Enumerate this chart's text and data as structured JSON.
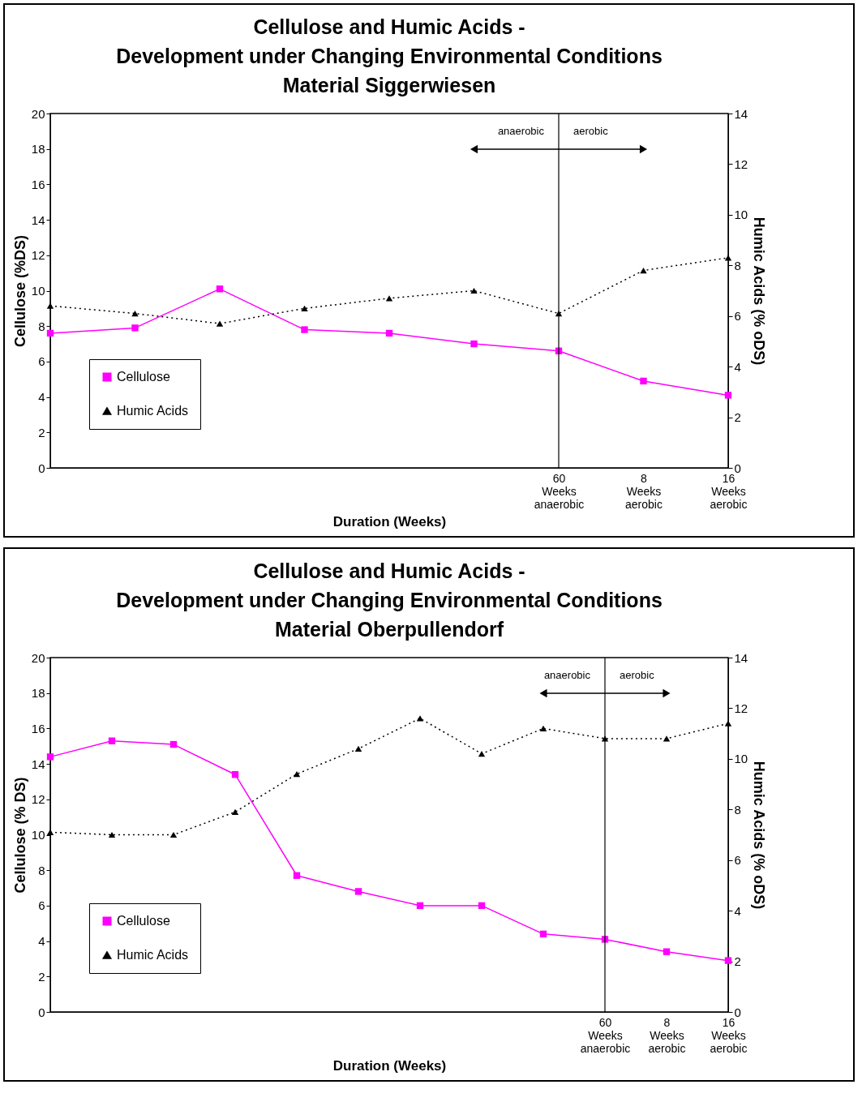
{
  "chart_data": [
    {
      "type": "line",
      "title": "Cellulose and Humic Acids -\nDevelopment under Changing Environmental Conditions\nMaterial Siggerwiesen",
      "xlabel": "Duration (Weeks)",
      "ylabel": "Cellulose (%DS)",
      "y2label": "Humic Acids (% oDS)",
      "categories": [
        null,
        null,
        null,
        null,
        null,
        null,
        "60 Weeks anaerobic",
        "8 Weeks aerobic",
        "16 Weeks aerobic"
      ],
      "series": [
        {
          "name": "Cellulose",
          "color": "#ff00ff",
          "marker": "square",
          "line_style": "solid",
          "values": [
            7.6,
            7.9,
            10.1,
            7.8,
            7.6,
            7.0,
            6.6,
            4.9,
            4.1
          ]
        },
        {
          "name": "Humic Acids",
          "color": "#000000",
          "marker": "triangle",
          "line_style": "dotted",
          "axis": "y2",
          "values": [
            6.4,
            6.1,
            5.7,
            6.3,
            6.7,
            7.0,
            6.1,
            7.8,
            8.3
          ]
        }
      ],
      "ylim": [
        0,
        20
      ],
      "yticks": [
        0,
        2,
        4,
        6,
        8,
        10,
        12,
        14,
        16,
        18,
        20
      ],
      "y2lim": [
        0,
        14
      ],
      "y2ticks": [
        0,
        2,
        4,
        6,
        8,
        10,
        12,
        14
      ],
      "ref_lines": [
        {
          "axis": "x",
          "value": "60 Weeks anaerobic",
          "color": "#000000"
        }
      ],
      "annotations": [
        "anaerobic",
        "aerobic"
      ],
      "legend": "bottom left",
      "grid": false
    },
    {
      "type": "line",
      "title": "Cellulose and Humic Acids -\nDevelopment under Changing Environmental Conditions\nMaterial Oberpullendorf",
      "xlabel": "Duration (Weeks)",
      "ylabel": "Cellulose (% DS)",
      "y2label": "Humic Acids (% oDS)",
      "categories": [
        null,
        null,
        null,
        null,
        null,
        null,
        null,
        null,
        null,
        "60 Weeks anaerobic",
        "8 Weeks aerobic",
        "16 Weeks aerobic"
      ],
      "series": [
        {
          "name": "Cellulose",
          "color": "#ff00ff",
          "marker": "square",
          "line_style": "solid",
          "values": [
            14.4,
            15.3,
            15.1,
            13.4,
            7.7,
            6.8,
            6.0,
            6.0,
            4.4,
            4.1,
            3.4,
            2.9
          ]
        },
        {
          "name": "Humic Acids",
          "color": "#000000",
          "marker": "triangle",
          "line_style": "dotted",
          "axis": "y2",
          "values": [
            7.1,
            7.0,
            7.0,
            7.9,
            9.4,
            10.4,
            11.6,
            10.2,
            11.2,
            10.8,
            10.8,
            11.4
          ]
        }
      ],
      "ylim": [
        0,
        20
      ],
      "yticks": [
        0,
        2,
        4,
        6,
        8,
        10,
        12,
        14,
        16,
        18,
        20
      ],
      "y2lim": [
        0,
        14
      ],
      "y2ticks": [
        0,
        2,
        4,
        6,
        8,
        10,
        12,
        14
      ],
      "ref_lines": [
        {
          "axis": "x",
          "value": "60 Weeks anaerobic",
          "color": "#000000"
        }
      ],
      "annotations": [
        "anaerobic",
        "aerobic"
      ],
      "legend": "bottom left",
      "grid": false
    }
  ]
}
